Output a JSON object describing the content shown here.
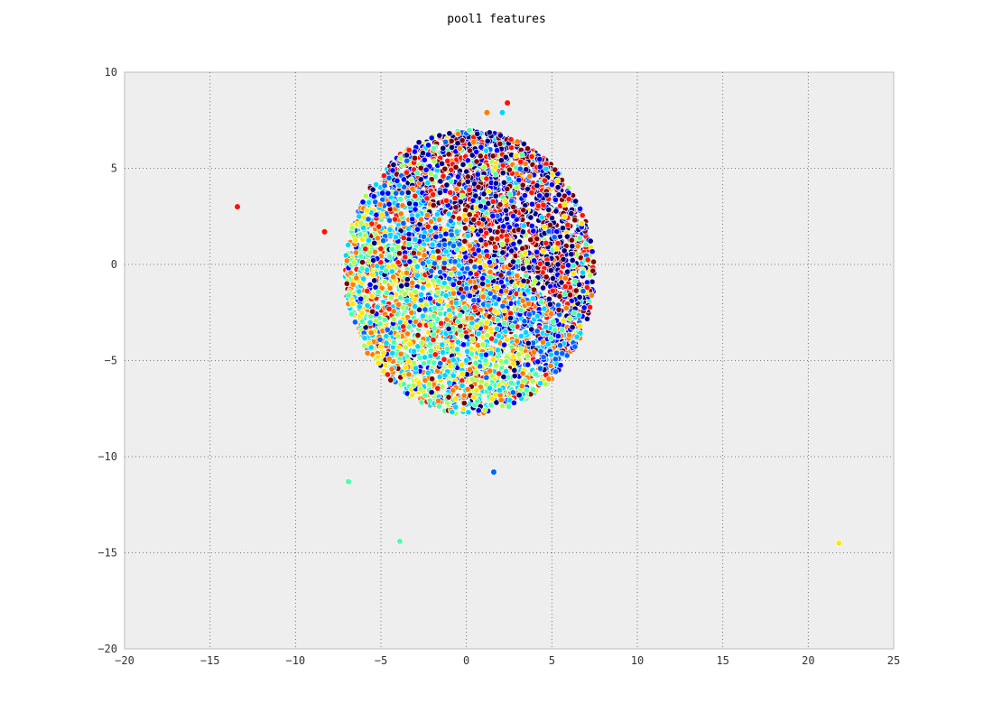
{
  "chart_data": {
    "type": "scatter",
    "title": "pool1 features",
    "xlabel": "",
    "ylabel": "",
    "xlim": [
      -20,
      25
    ],
    "ylim": [
      -20,
      10
    ],
    "xticks": [
      -20,
      -15,
      -10,
      -5,
      0,
      5,
      10,
      15,
      20,
      25
    ],
    "yticks": [
      -20,
      -15,
      -10,
      -5,
      0,
      5,
      10
    ],
    "grid": true,
    "background": "#eeeeee",
    "cluster": {
      "description_note": "dense elliptical cluster of several thousand points colored by class",
      "center": [
        0.2,
        -0.4
      ],
      "radius_x": 7.3,
      "radius_y": 7.4,
      "point_count": 5000
    },
    "class_colors": [
      "#00007f",
      "#0000ff",
      "#0063ff",
      "#00d5ff",
      "#4effa9",
      "#a9ff4e",
      "#ffe500",
      "#ff7c00",
      "#ff1300",
      "#7f0000"
    ],
    "outliers": [
      {
        "x": -13.4,
        "y": 3.0,
        "color": "#ff1300"
      },
      {
        "x": -8.3,
        "y": 1.7,
        "color": "#ff1300"
      },
      {
        "x": -6.9,
        "y": -11.3,
        "color": "#4effa9"
      },
      {
        "x": -3.9,
        "y": -14.4,
        "color": "#4effa9"
      },
      {
        "x": 1.6,
        "y": -10.8,
        "color": "#0063ff"
      },
      {
        "x": 21.8,
        "y": -14.5,
        "color": "#ffe500"
      },
      {
        "x": 2.4,
        "y": 8.4,
        "color": "#ff1300"
      },
      {
        "x": 1.2,
        "y": 7.9,
        "color": "#ff7c00"
      },
      {
        "x": 2.1,
        "y": 7.9,
        "color": "#00d5ff"
      }
    ]
  }
}
